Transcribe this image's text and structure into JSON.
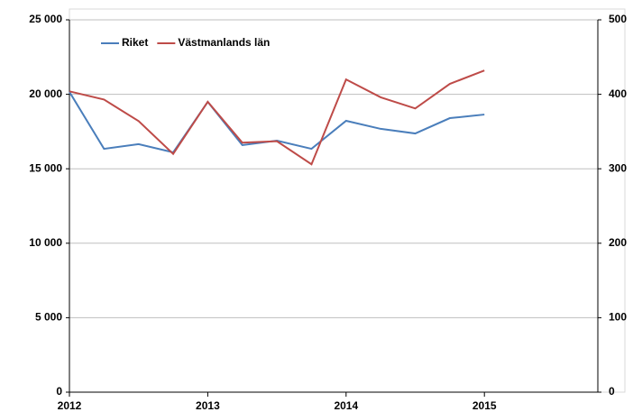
{
  "chart_data": {
    "type": "line",
    "x": [
      2012,
      2012.25,
      2012.5,
      2012.75,
      2013,
      2013.25,
      2013.5,
      2013.75,
      2014,
      2014.25,
      2014.5,
      2014.75,
      2015
    ],
    "series": [
      {
        "name": "Riket",
        "color": "#4a7ebb",
        "values": [
          20160,
          16340,
          16650,
          16100,
          19490,
          16590,
          16890,
          16340,
          18220,
          17680,
          17370,
          18400,
          18640
        ]
      },
      {
        "name": "Västmanlands län",
        "color": "#be4b48",
        "axis": "y2",
        "values": [
          404,
          393,
          364,
          320,
          390,
          335,
          337,
          306,
          420,
          396,
          381,
          414,
          432
        ]
      }
    ],
    "xlim": [
      2012,
      2015.82
    ],
    "xticks": [
      2012,
      2013,
      2014,
      2015
    ],
    "ylim": [
      0,
      25000
    ],
    "yticks": [
      0,
      {
        "value": 5000,
        "label": "5 000"
      },
      {
        "value": 10000,
        "label": "10 000"
      },
      {
        "value": 15000,
        "label": "15 000"
      },
      {
        "value": 20000,
        "label": "20 000"
      },
      {
        "value": 25000,
        "label": "25 000"
      }
    ],
    "y2lim": [
      0,
      500
    ],
    "y2ticks": [
      0,
      100,
      200,
      300,
      400,
      500
    ],
    "grid": true,
    "legend": "top-left"
  }
}
